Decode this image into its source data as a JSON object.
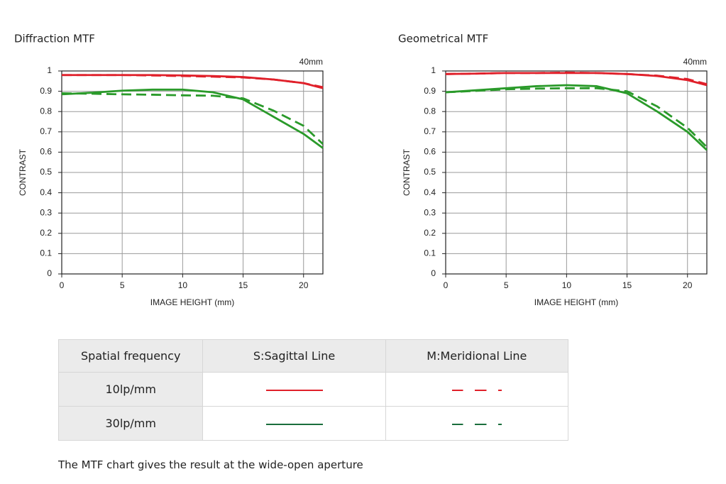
{
  "chart_data": [
    {
      "type": "line",
      "title": "Diffraction MTF",
      "annotation": "40mm",
      "xlabel": "IMAGE HEIGHT (mm)",
      "ylabel": "CONTRAST",
      "x": [
        0,
        2.5,
        5,
        7.5,
        10,
        12.5,
        15,
        17.5,
        20,
        21.6
      ],
      "xlim": [
        0,
        21.6
      ],
      "xticks": [
        0,
        5,
        10,
        15,
        20
      ],
      "ylim": [
        0,
        1
      ],
      "yticks": [
        0,
        0.1,
        0.2,
        0.3,
        0.4,
        0.5,
        0.6,
        0.7,
        0.8,
        0.9,
        1
      ],
      "grid": true,
      "series": [
        {
          "color": "#e0202a",
          "dashed": false,
          "values": [
            0.98,
            0.98,
            0.98,
            0.98,
            0.978,
            0.975,
            0.97,
            0.958,
            0.94,
            0.915
          ]
        },
        {
          "color": "#e0202a",
          "dashed": true,
          "values": [
            0.98,
            0.98,
            0.98,
            0.978,
            0.975,
            0.972,
            0.968,
            0.958,
            0.94,
            0.92
          ]
        },
        {
          "color": "#2a9a2a",
          "dashed": false,
          "values": [
            0.885,
            0.893,
            0.903,
            0.908,
            0.908,
            0.895,
            0.86,
            0.775,
            0.69,
            0.62
          ]
        },
        {
          "color": "#2a9a2a",
          "dashed": true,
          "values": [
            0.89,
            0.888,
            0.885,
            0.883,
            0.88,
            0.878,
            0.865,
            0.805,
            0.73,
            0.64
          ]
        }
      ]
    },
    {
      "type": "line",
      "title": "Geometrical MTF",
      "annotation": "40mm",
      "xlabel": "IMAGE HEIGHT (mm)",
      "ylabel": "CONTRAST",
      "x": [
        0,
        2.5,
        5,
        7.5,
        10,
        12.5,
        15,
        17.5,
        20,
        21.6
      ],
      "xlim": [
        0,
        21.6
      ],
      "xticks": [
        0,
        5,
        10,
        15,
        20
      ],
      "ylim": [
        0,
        1
      ],
      "yticks": [
        0,
        0.1,
        0.2,
        0.3,
        0.4,
        0.5,
        0.6,
        0.7,
        0.8,
        0.9,
        1
      ],
      "grid": true,
      "series": [
        {
          "color": "#e0202a",
          "dashed": false,
          "values": [
            0.985,
            0.987,
            0.99,
            0.99,
            0.99,
            0.99,
            0.985,
            0.975,
            0.955,
            0.93
          ]
        },
        {
          "color": "#e0202a",
          "dashed": true,
          "values": [
            0.985,
            0.987,
            0.99,
            0.99,
            0.992,
            0.99,
            0.985,
            0.977,
            0.96,
            0.935
          ]
        },
        {
          "color": "#2a9a2a",
          "dashed": false,
          "values": [
            0.895,
            0.905,
            0.915,
            0.925,
            0.93,
            0.925,
            0.89,
            0.8,
            0.7,
            0.61
          ]
        },
        {
          "color": "#2a9a2a",
          "dashed": true,
          "values": [
            0.895,
            0.902,
            0.91,
            0.913,
            0.915,
            0.915,
            0.9,
            0.825,
            0.72,
            0.625
          ]
        }
      ]
    }
  ],
  "legend_table": {
    "header": [
      "Spatial frequency",
      "S:Sagittal Line",
      "M:Meridional Line"
    ],
    "rows": [
      "10lp/mm",
      "30lp/mm"
    ]
  },
  "note": "The MTF chart gives the result at the wide-open aperture"
}
